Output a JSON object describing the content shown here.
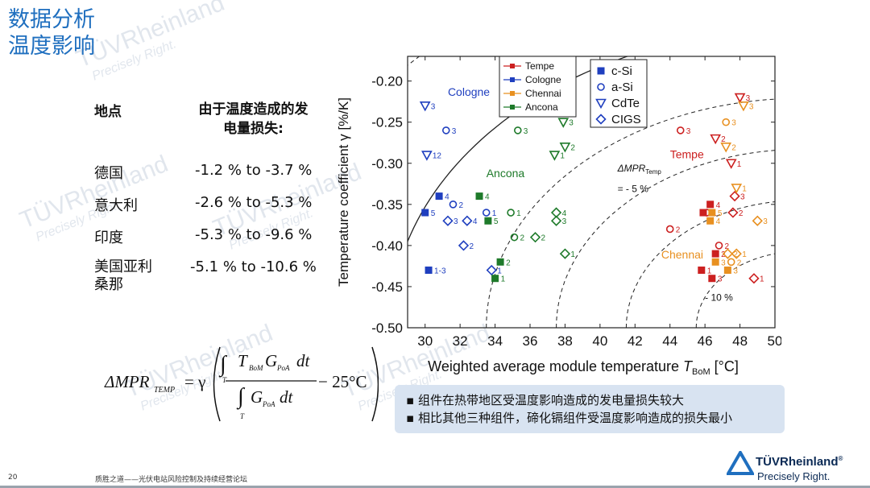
{
  "title": {
    "line1": "数据分析",
    "line2": "温度影响"
  },
  "table": {
    "header_location": "地点",
    "header_loss_line1": "由于温度造成的发",
    "header_loss_line2": "电量损失:",
    "rows": [
      {
        "location": "德国",
        "loss": "-1.2 % to -3.7 %"
      },
      {
        "location": "意大利",
        "loss": "-2.6 % to -5.3 %"
      },
      {
        "location": "印度",
        "loss": "-5.3 % to -9.6 %"
      },
      {
        "location_line1": "美国亚利",
        "location_line2": "桑那",
        "loss": "-5.1 % to -10.6 %"
      }
    ]
  },
  "formula": {
    "lhs": "ΔMPR",
    "lhs_sub": "TEMP",
    "eq": "= γ",
    "num_T": "T",
    "num_T_sub": "BoM",
    "num_G": "G",
    "num_G_sub": "PoA",
    "num_dt": "dt",
    "den_G": "G",
    "den_G_sub": "PoA",
    "den_dt": "dt",
    "int_T": "T",
    "tail": "− 25°C"
  },
  "bullets": [
    "组件在热带地区受温度影响造成的发电量损失较大",
    "相比其他三种组件，碲化镉组件受温度影响造成的损失最小"
  ],
  "footer": {
    "page": "20",
    "text": "质胜之道——光伏电站风险控制及持续经营论坛"
  },
  "logo": {
    "name": "TÜVRheinland",
    "reg": "®",
    "tagline": "Precisely Right."
  },
  "watermark": {
    "name": "TÜVRheinland",
    "tagline": "Precisely Right."
  },
  "chart_data": {
    "type": "scatter",
    "xlabel": "Weighted average module temperature",
    "xlabel_sym": "T",
    "xlabel_sub": "BoM",
    "xlabel_unit": "[°C]",
    "ylabel": "Temperature coefficient γ [%/K]",
    "xlim": [
      29,
      50
    ],
    "ylim": [
      -0.5,
      -0.17
    ],
    "xticks": [
      30,
      32,
      34,
      36,
      38,
      40,
      42,
      44,
      46,
      48,
      50
    ],
    "yticks": [
      -0.2,
      -0.25,
      -0.3,
      -0.35,
      -0.4,
      -0.45,
      -0.5
    ],
    "location_colors": {
      "Cologne": "#1f3fbf",
      "Ancona": "#1e7a2a",
      "Tempe": "#cc2020",
      "Chennai": "#e89020"
    },
    "legend_locations": [
      "Tempe",
      "Cologne",
      "Chennai",
      "Ancona"
    ],
    "legend_types": [
      {
        "name": "c-Si",
        "marker": "square"
      },
      {
        "name": "a-Si",
        "marker": "circle"
      },
      {
        "name": "CdTe",
        "marker": "triangle"
      },
      {
        "name": "CIGS",
        "marker": "diamond"
      }
    ],
    "location_labels": [
      {
        "text": "Cologne",
        "x": 31.3,
        "y": -0.218,
        "loc": "Cologne"
      },
      {
        "text": "Ancona",
        "x": 33.5,
        "y": -0.317,
        "loc": "Ancona"
      },
      {
        "text": "Tempe",
        "x": 44.0,
        "y": -0.294,
        "loc": "Tempe"
      },
      {
        "text": "Chennai",
        "x": 43.5,
        "y": -0.416,
        "loc": "Chennai"
      }
    ],
    "annotations": [
      {
        "text": "ΔMPR",
        "sub": "Temp",
        "x": 41.0,
        "y": -0.31
      },
      {
        "text": "= - 5 %",
        "x": 41.0,
        "y": -0.335
      },
      {
        "text": "- 10 %",
        "x": 46.0,
        "y": -0.467
      }
    ],
    "contours": [
      {
        "dev": 6.0,
        "style": "dash"
      },
      {
        "dev": 10.0,
        "style": "dash"
      },
      {
        "dev": 14.0,
        "style": "dash"
      },
      {
        "dev": 18.0,
        "style": "dash"
      },
      {
        "dev": 23.5,
        "style": "solid"
      },
      {
        "dev": 30.5,
        "style": "dash"
      },
      {
        "dev": 37.0,
        "style": "dash"
      },
      {
        "dev": 44.0,
        "style": "solid"
      },
      {
        "dev": 51.0,
        "style": "dash"
      }
    ],
    "points": [
      {
        "loc": "Cologne",
        "m": "triangle",
        "x": 30.0,
        "y": -0.23,
        "label": "3"
      },
      {
        "loc": "Cologne",
        "m": "triangle",
        "x": 30.1,
        "y": -0.29,
        "label": "12"
      },
      {
        "loc": "Cologne",
        "m": "circle",
        "x": 31.2,
        "y": -0.26,
        "label": "3"
      },
      {
        "loc": "Cologne",
        "m": "circle",
        "x": 31.6,
        "y": -0.35,
        "label": "2"
      },
      {
        "loc": "Cologne",
        "m": "square",
        "x": 30.0,
        "y": -0.36,
        "label": "5"
      },
      {
        "loc": "Cologne",
        "m": "square",
        "x": 30.8,
        "y": -0.34,
        "label": "4"
      },
      {
        "loc": "Cologne",
        "m": "diamond",
        "x": 31.3,
        "y": -0.37,
        "label": "3"
      },
      {
        "loc": "Cologne",
        "m": "diamond",
        "x": 32.4,
        "y": -0.37,
        "label": "4"
      },
      {
        "loc": "Cologne",
        "m": "diamond",
        "x": 32.2,
        "y": -0.4,
        "label": "2"
      },
      {
        "loc": "Cologne",
        "m": "square",
        "x": 30.2,
        "y": -0.43,
        "label": "1-3"
      },
      {
        "loc": "Cologne",
        "m": "diamond",
        "x": 33.8,
        "y": -0.43,
        "label": "1"
      },
      {
        "loc": "Cologne",
        "m": "circle",
        "x": 33.5,
        "y": -0.36,
        "label": "1"
      },
      {
        "loc": "Ancona",
        "m": "circle",
        "x": 35.3,
        "y": -0.26,
        "label": "3"
      },
      {
        "loc": "Ancona",
        "m": "triangle",
        "x": 37.9,
        "y": -0.25,
        "label": "3"
      },
      {
        "loc": "Ancona",
        "m": "triangle",
        "x": 38.0,
        "y": -0.28,
        "label": "2"
      },
      {
        "loc": "Ancona",
        "m": "triangle",
        "x": 37.4,
        "y": -0.29,
        "label": "1"
      },
      {
        "loc": "Ancona",
        "m": "square",
        "x": 33.1,
        "y": -0.34,
        "label": "4"
      },
      {
        "loc": "Ancona",
        "m": "square",
        "x": 33.6,
        "y": -0.37,
        "label": "5"
      },
      {
        "loc": "Ancona",
        "m": "circle",
        "x": 34.9,
        "y": -0.36,
        "label": "1"
      },
      {
        "loc": "Ancona",
        "m": "circle",
        "x": 35.1,
        "y": -0.39,
        "label": "2"
      },
      {
        "loc": "Ancona",
        "m": "diamond",
        "x": 36.3,
        "y": -0.39,
        "label": "2"
      },
      {
        "loc": "Ancona",
        "m": "diamond",
        "x": 37.5,
        "y": -0.36,
        "label": "4"
      },
      {
        "loc": "Ancona",
        "m": "diamond",
        "x": 37.5,
        "y": -0.37,
        "label": "3"
      },
      {
        "loc": "Ancona",
        "m": "diamond",
        "x": 38.0,
        "y": -0.41,
        "label": "1"
      },
      {
        "loc": "Ancona",
        "m": "square",
        "x": 34.3,
        "y": -0.42,
        "label": "2"
      },
      {
        "loc": "Ancona",
        "m": "square",
        "x": 34.0,
        "y": -0.44,
        "label": "1"
      },
      {
        "loc": "Tempe",
        "m": "triangle",
        "x": 48.0,
        "y": -0.22,
        "label": "3"
      },
      {
        "loc": "Tempe",
        "m": "triangle",
        "x": 46.6,
        "y": -0.27,
        "label": "2"
      },
      {
        "loc": "Tempe",
        "m": "triangle",
        "x": 47.5,
        "y": -0.3,
        "label": "1"
      },
      {
        "loc": "Tempe",
        "m": "circle",
        "x": 44.6,
        "y": -0.26,
        "label": "3"
      },
      {
        "loc": "Tempe",
        "m": "circle",
        "x": 44.0,
        "y": -0.38,
        "label": "2"
      },
      {
        "loc": "Tempe",
        "m": "circle",
        "x": 46.1,
        "y": -0.36,
        "label": "1"
      },
      {
        "loc": "Tempe",
        "m": "square",
        "x": 45.9,
        "y": -0.36,
        "label": "5"
      },
      {
        "loc": "Tempe",
        "m": "square",
        "x": 46.3,
        "y": -0.35,
        "label": "4"
      },
      {
        "loc": "Tempe",
        "m": "diamond",
        "x": 47.6,
        "y": -0.36,
        "label": "2"
      },
      {
        "loc": "Tempe",
        "m": "diamond",
        "x": 47.7,
        "y": -0.34,
        "label": "3"
      },
      {
        "loc": "Tempe",
        "m": "circle",
        "x": 46.8,
        "y": -0.4,
        "label": "2"
      },
      {
        "loc": "Tempe",
        "m": "square",
        "x": 46.6,
        "y": -0.41,
        "label": "2"
      },
      {
        "loc": "Tempe",
        "m": "square",
        "x": 45.8,
        "y": -0.43,
        "label": "1"
      },
      {
        "loc": "Tempe",
        "m": "square",
        "x": 46.4,
        "y": -0.44,
        "label": "3"
      },
      {
        "loc": "Tempe",
        "m": "diamond",
        "x": 48.8,
        "y": -0.44,
        "label": "1"
      },
      {
        "loc": "Chennai",
        "m": "triangle",
        "x": 48.2,
        "y": -0.23,
        "label": "3"
      },
      {
        "loc": "Chennai",
        "m": "triangle",
        "x": 47.2,
        "y": -0.28,
        "label": "2"
      },
      {
        "loc": "Chennai",
        "m": "triangle",
        "x": 47.8,
        "y": -0.33,
        "label": "1"
      },
      {
        "loc": "Chennai",
        "m": "circle",
        "x": 47.2,
        "y": -0.25,
        "label": "3"
      },
      {
        "loc": "Chennai",
        "m": "circle",
        "x": 47.5,
        "y": -0.42,
        "label": "2"
      },
      {
        "loc": "Chennai",
        "m": "square",
        "x": 46.4,
        "y": -0.36,
        "label": "5"
      },
      {
        "loc": "Chennai",
        "m": "square",
        "x": 46.3,
        "y": -0.37,
        "label": "4"
      },
      {
        "loc": "Chennai",
        "m": "square",
        "x": 46.6,
        "y": -0.42,
        "label": "3"
      },
      {
        "loc": "Chennai",
        "m": "square",
        "x": 47.3,
        "y": -0.43,
        "label": "3"
      },
      {
        "loc": "Chennai",
        "m": "diamond",
        "x": 47.3,
        "y": -0.41,
        "label": "2"
      },
      {
        "loc": "Chennai",
        "m": "diamond",
        "x": 47.8,
        "y": -0.41,
        "label": "1"
      },
      {
        "loc": "Chennai",
        "m": "diamond",
        "x": 49.0,
        "y": -0.37,
        "label": "3"
      }
    ]
  }
}
